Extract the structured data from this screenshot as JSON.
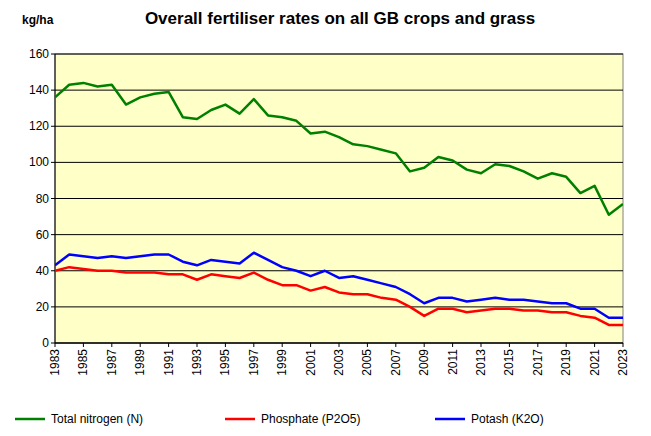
{
  "chart_data": {
    "type": "line",
    "title": "Overall fertiliser rates on all GB crops and grass",
    "y_label": "kg/ha",
    "x": [
      1983,
      1984,
      1985,
      1986,
      1987,
      1988,
      1989,
      1990,
      1991,
      1992,
      1993,
      1994,
      1995,
      1996,
      1997,
      1998,
      1999,
      2000,
      2001,
      2002,
      2003,
      2004,
      2005,
      2006,
      2007,
      2008,
      2009,
      2010,
      2011,
      2012,
      2013,
      2014,
      2015,
      2016,
      2017,
      2018,
      2019,
      2020,
      2021,
      2022,
      2023
    ],
    "series": [
      {
        "name": "Total nitrogen (N)",
        "color": "#008000",
        "values": [
          136,
          143,
          144,
          142,
          143,
          132,
          136,
          138,
          139,
          125,
          124,
          129,
          132,
          127,
          135,
          126,
          125,
          123,
          116,
          117,
          114,
          110,
          109,
          107,
          105,
          95,
          97,
          103,
          101,
          96,
          94,
          99,
          98,
          95,
          91,
          94,
          92,
          83,
          87,
          71,
          77
        ]
      },
      {
        "name": "Phosphate (P2O5)",
        "color": "#ff0000",
        "values": [
          40,
          42,
          41,
          40,
          40,
          39,
          39,
          39,
          38,
          38,
          35,
          38,
          37,
          36,
          39,
          35,
          32,
          32,
          29,
          31,
          28,
          27,
          27,
          25,
          24,
          20,
          15,
          19,
          19,
          17,
          18,
          19,
          19,
          18,
          18,
          17,
          17,
          15,
          14,
          10,
          10
        ]
      },
      {
        "name": "Potash (K2O)",
        "color": "#0000ff",
        "values": [
          43,
          49,
          48,
          47,
          48,
          47,
          48,
          49,
          49,
          45,
          43,
          46,
          45,
          44,
          50,
          46,
          42,
          40,
          37,
          40,
          36,
          37,
          35,
          33,
          31,
          27,
          22,
          25,
          25,
          23,
          24,
          25,
          24,
          24,
          23,
          22,
          22,
          19,
          19,
          14,
          14
        ]
      }
    ],
    "xlim": [
      1983,
      2023
    ],
    "xticks": [
      1983,
      1985,
      1987,
      1989,
      1991,
      1993,
      1995,
      1997,
      1999,
      2001,
      2003,
      2005,
      2007,
      2009,
      2011,
      2013,
      2015,
      2017,
      2019,
      2021,
      2023
    ],
    "ylim": [
      0,
      160
    ],
    "yticks": [
      0,
      20,
      40,
      60,
      80,
      100,
      120,
      140,
      160
    ],
    "grid": true,
    "legend": "bottom"
  }
}
